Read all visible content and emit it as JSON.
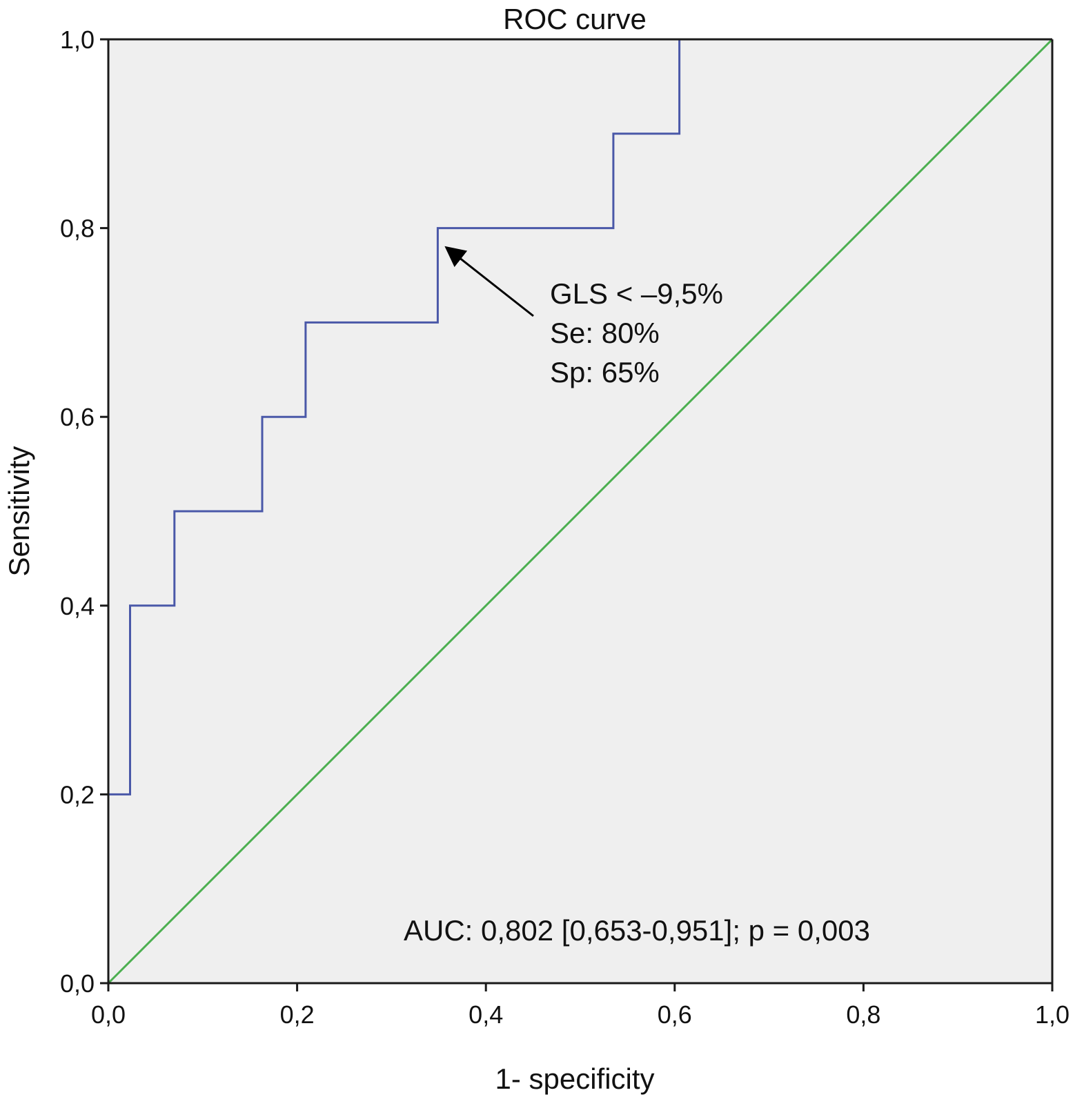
{
  "chart_data": {
    "type": "line",
    "title": "ROC curve",
    "xlabel": "1- specificity",
    "ylabel": "Sensitivity",
    "xlim": [
      0,
      1
    ],
    "ylim": [
      0,
      1
    ],
    "xticks": [
      "0,0",
      "0,2",
      "0,4",
      "0,6",
      "0,8",
      "1,0"
    ],
    "yticks": [
      "0,0",
      "0,2",
      "0,4",
      "0,6",
      "0,8",
      "1,0"
    ],
    "xtick_values": [
      0,
      0.2,
      0.4,
      0.6,
      0.8,
      1.0
    ],
    "ytick_values": [
      0,
      0.2,
      0.4,
      0.6,
      0.8,
      1.0
    ],
    "grid": false,
    "series": [
      {
        "color": "#4a58a8",
        "step": true,
        "x": [
          0,
          0,
          0.023,
          0.023,
          0.07,
          0.07,
          0.163,
          0.163,
          0.209,
          0.209,
          0.349,
          0.349,
          0.535,
          0.535,
          0.605,
          0.605,
          1.0
        ],
        "y": [
          0,
          0.2,
          0.2,
          0.4,
          0.4,
          0.5,
          0.5,
          0.6,
          0.6,
          0.7,
          0.7,
          0.8,
          0.8,
          0.9,
          0.9,
          1.0,
          1.0
        ]
      },
      {
        "color": "#4caf50",
        "x": [
          0,
          1
        ],
        "y": [
          0,
          1
        ]
      }
    ],
    "annotations": {
      "cutoff_lines": [
        "GLS < –9,5%",
        "Se: 80%",
        "Sp: 65%"
      ],
      "arrow_to": [
        0.37,
        0.77
      ],
      "auc": "AUC: 0,802 [0,653-0,951]; p = 0,003"
    },
    "plot_background": "#efefef"
  }
}
